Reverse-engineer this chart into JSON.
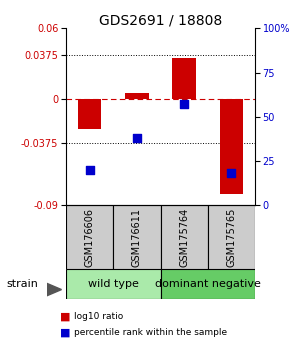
{
  "title": "GDS2691 / 18808",
  "samples": [
    "GSM176606",
    "GSM176611",
    "GSM175764",
    "GSM175765"
  ],
  "groups": [
    {
      "name": "wild type",
      "color": "#aaeaaa",
      "indices": [
        0,
        1
      ]
    },
    {
      "name": "dominant negative",
      "color": "#66cc66",
      "indices": [
        2,
        3
      ]
    }
  ],
  "red_bars": [
    -0.025,
    0.005,
    0.035,
    -0.08
  ],
  "blue_squares_pct": [
    20,
    38,
    57,
    18
  ],
  "ylim_left": [
    -0.09,
    0.06
  ],
  "ylim_right": [
    0,
    100
  ],
  "yticks_left": [
    -0.09,
    -0.0375,
    0,
    0.0375,
    0.06
  ],
  "yticks_right": [
    0,
    25,
    50,
    75,
    100
  ],
  "hline_dotted": [
    -0.0375,
    0.0375
  ],
  "hline_dashed": 0.0,
  "bar_color": "#cc0000",
  "square_color": "#0000cc",
  "bar_width": 0.5,
  "square_size": 30,
  "legend_red": "log10 ratio",
  "legend_blue": "percentile rank within the sample",
  "strain_label": "strain",
  "group_label_fontsize": 8,
  "sample_label_fontsize": 7,
  "sample_box_color": "#cccccc",
  "title_fontsize": 10
}
